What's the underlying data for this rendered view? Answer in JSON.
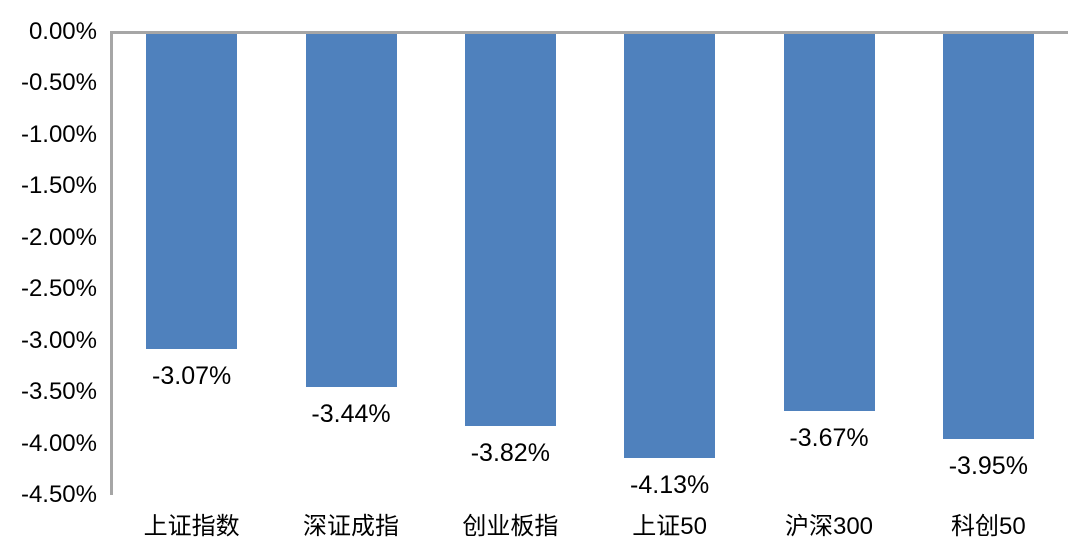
{
  "chart_data": {
    "type": "bar",
    "title": "",
    "xlabel": "",
    "ylabel": "",
    "categories": [
      "上证指数",
      "深证成指",
      "创业板指",
      "上证50",
      "沪深300",
      "科创50"
    ],
    "values": [
      -3.07,
      -3.44,
      -3.82,
      -4.13,
      -3.67,
      -3.95
    ],
    "data_labels": [
      "-3.07%",
      "-3.44%",
      "-3.82%",
      "-4.13%",
      "-3.67%",
      "-3.95%"
    ],
    "y_ticks": [
      "0.00%",
      "-0.50%",
      "-1.00%",
      "-1.50%",
      "-2.00%",
      "-2.50%",
      "-3.00%",
      "-3.50%",
      "-4.00%",
      "-4.50%"
    ],
    "ylim": [
      -4.5,
      0
    ],
    "grid": false,
    "legend": "none",
    "bar_color": "#4F81BD",
    "axis_line_color": "#A6A6A6",
    "label_color": "#000000"
  }
}
